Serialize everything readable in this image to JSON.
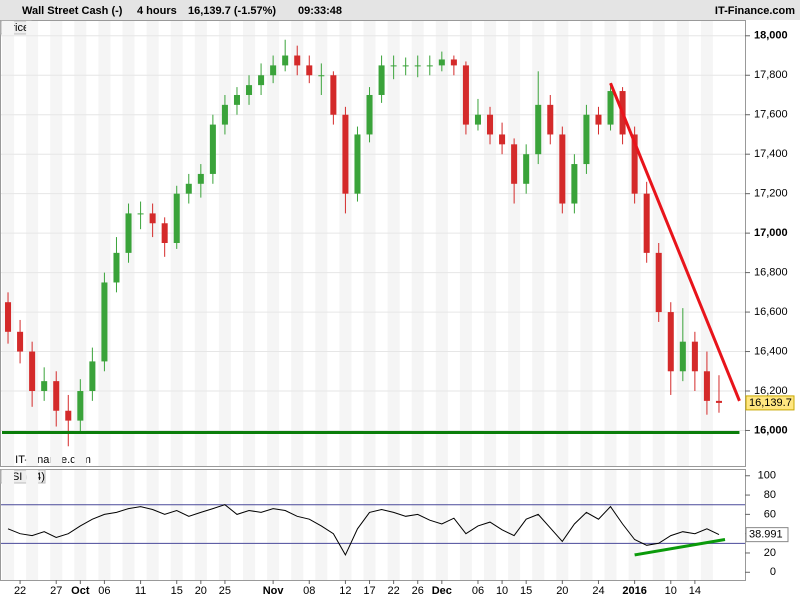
{
  "chart_data": {
    "type": "candlestick",
    "header": {
      "instrument": "Wall Street Cash (-)",
      "period": "4 hours",
      "quote": "16,139.7 (-1.57%)",
      "time": "09:33:48",
      "brand": "IT-Finance.com"
    },
    "price_panel_label": "Price",
    "copyright": "© IT-Finance.com",
    "up_color": "#3aa33a",
    "down_color": "#d42a2a",
    "candles": [
      [
        16650,
        16700,
        16440,
        16500
      ],
      [
        16500,
        16560,
        16340,
        16400
      ],
      [
        16400,
        16450,
        16120,
        16200
      ],
      [
        16200,
        16320,
        16150,
        16250
      ],
      [
        16250,
        16300,
        16020,
        16100
      ],
      [
        16100,
        16180,
        15920,
        16050
      ],
      [
        16050,
        16260,
        15990,
        16200
      ],
      [
        16200,
        16420,
        16150,
        16350
      ],
      [
        16350,
        16800,
        16300,
        16750
      ],
      [
        16750,
        16980,
        16700,
        16900
      ],
      [
        16900,
        17150,
        16850,
        17100
      ],
      [
        17100,
        17160,
        17020,
        17100
      ],
      [
        17100,
        17150,
        16980,
        17050
      ],
      [
        17050,
        17080,
        16880,
        16950
      ],
      [
        16950,
        17240,
        16920,
        17200
      ],
      [
        17200,
        17300,
        17150,
        17250
      ],
      [
        17250,
        17350,
        17180,
        17300
      ],
      [
        17300,
        17600,
        17250,
        17550
      ],
      [
        17550,
        17700,
        17500,
        17650
      ],
      [
        17650,
        17740,
        17600,
        17700
      ],
      [
        17700,
        17800,
        17650,
        17750
      ],
      [
        17750,
        17860,
        17700,
        17800
      ],
      [
        17800,
        17900,
        17760,
        17850
      ],
      [
        17850,
        17980,
        17820,
        17900
      ],
      [
        17900,
        17950,
        17800,
        17850
      ],
      [
        17850,
        17900,
        17760,
        17800
      ],
      [
        17800,
        17860,
        17700,
        17800
      ],
      [
        17800,
        17820,
        17550,
        17600
      ],
      [
        17600,
        17640,
        17100,
        17200
      ],
      [
        17200,
        17540,
        17160,
        17500
      ],
      [
        17500,
        17740,
        17460,
        17700
      ],
      [
        17700,
        17900,
        17660,
        17850
      ],
      [
        17850,
        17900,
        17780,
        17850
      ],
      [
        17850,
        17890,
        17800,
        17850
      ],
      [
        17850,
        17900,
        17790,
        17850
      ],
      [
        17850,
        17900,
        17800,
        17850
      ],
      [
        17850,
        17920,
        17820,
        17880
      ],
      [
        17880,
        17900,
        17800,
        17850
      ],
      [
        17850,
        17870,
        17500,
        17550
      ],
      [
        17550,
        17680,
        17520,
        17600
      ],
      [
        17600,
        17640,
        17450,
        17500
      ],
      [
        17500,
        17560,
        17400,
        17450
      ],
      [
        17450,
        17480,
        17150,
        17250
      ],
      [
        17250,
        17450,
        17200,
        17400
      ],
      [
        17400,
        17820,
        17350,
        17650
      ],
      [
        17650,
        17700,
        17450,
        17500
      ],
      [
        17500,
        17540,
        17100,
        17150
      ],
      [
        17150,
        17400,
        17100,
        17350
      ],
      [
        17350,
        17650,
        17300,
        17600
      ],
      [
        17600,
        17640,
        17500,
        17550
      ],
      [
        17550,
        17760,
        17520,
        17720
      ],
      [
        17720,
        17740,
        17450,
        17500
      ],
      [
        17500,
        17540,
        17150,
        17200
      ],
      [
        17200,
        17260,
        16850,
        16900
      ],
      [
        16900,
        16950,
        16550,
        16600
      ],
      [
        16600,
        16650,
        16180,
        16300
      ],
      [
        16300,
        16620,
        16250,
        16450
      ],
      [
        16450,
        16500,
        16200,
        16300
      ],
      [
        16300,
        16400,
        16080,
        16150
      ],
      [
        16150,
        16280,
        16090,
        16139.7
      ]
    ],
    "x_labels": [
      null,
      "22",
      null,
      null,
      "27",
      null,
      "Oct",
      null,
      "06",
      null,
      null,
      "11",
      null,
      null,
      "15",
      null,
      "20",
      null,
      "25",
      null,
      null,
      null,
      "Nov",
      null,
      null,
      "08",
      null,
      null,
      "12",
      null,
      "17",
      null,
      "22",
      null,
      "26",
      null,
      "Dec",
      null,
      null,
      "06",
      null,
      "10",
      null,
      "15",
      null,
      null,
      "20",
      null,
      null,
      "24",
      null,
      null,
      "2016",
      null,
      null,
      "10",
      null,
      "14",
      null,
      null
    ],
    "ylim": [
      15820,
      18080
    ],
    "yticks": [
      {
        "value": 16000,
        "label": "16,000"
      },
      {
        "value": 16200,
        "label": "16,200"
      },
      {
        "value": 16400,
        "label": "16,400"
      },
      {
        "value": 16600,
        "label": "16,600"
      },
      {
        "value": 16800,
        "label": "16,800"
      },
      {
        "value": 17000,
        "label": "17,000"
      },
      {
        "value": 17200,
        "label": "17,200"
      },
      {
        "value": 17400,
        "label": "17,400"
      },
      {
        "value": 17600,
        "label": "17,600"
      },
      {
        "value": 17800,
        "label": "17,800"
      },
      {
        "value": 18000,
        "label": "18,000"
      }
    ],
    "last_price": {
      "value": 16139.7,
      "label": "16,139.7"
    },
    "trendlines": [
      {
        "color": "#e8141b",
        "points": [
          [
            50,
            17760
          ],
          [
            60.7,
            16150
          ]
        ]
      },
      {
        "color": "#0a7d0a",
        "points": [
          [
            -0.5,
            15990
          ],
          [
            60.7,
            15990
          ]
        ]
      }
    ],
    "rsi": {
      "label": "RSI (14)",
      "color": "#000000",
      "values": [
        45,
        40,
        38,
        42,
        36,
        40,
        48,
        55,
        60,
        62,
        66,
        68,
        65,
        60,
        64,
        58,
        62,
        66,
        70,
        60,
        64,
        62,
        66,
        64,
        58,
        55,
        48,
        40,
        18,
        45,
        62,
        65,
        62,
        58,
        60,
        54,
        50,
        56,
        40,
        48,
        52,
        44,
        38,
        55,
        60,
        46,
        32,
        50,
        62,
        55,
        68,
        50,
        34,
        28,
        30,
        38,
        42,
        40,
        45,
        38.991
      ],
      "ylim": [
        -8,
        107
      ],
      "yticks": [
        0,
        20,
        40,
        60,
        80,
        100
      ],
      "levels": [
        30,
        70
      ],
      "last": 38.991,
      "trendline": {
        "color": "#0a9a0a",
        "points": [
          [
            52,
            18
          ],
          [
            59.5,
            34
          ]
        ]
      }
    }
  }
}
